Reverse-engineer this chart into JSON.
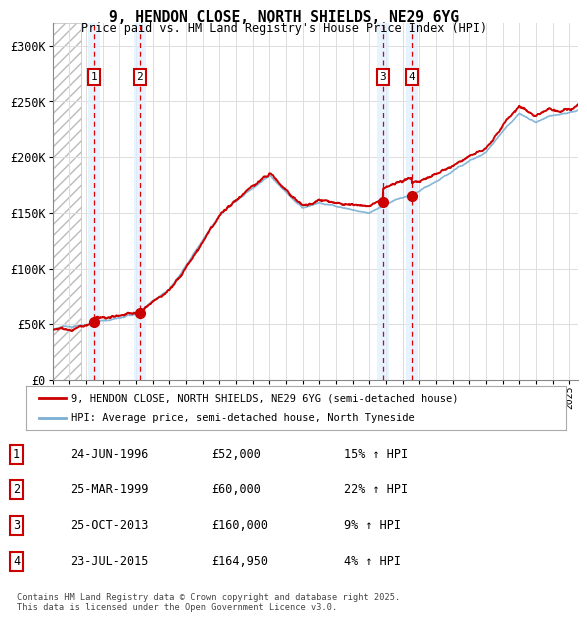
{
  "title": "9, HENDON CLOSE, NORTH SHIELDS, NE29 6YG",
  "subtitle": "Price paid vs. HM Land Registry's House Price Index (HPI)",
  "xlim_start": 1994.0,
  "xlim_end": 2025.5,
  "ylim": [
    0,
    320000
  ],
  "yticks": [
    0,
    50000,
    100000,
    150000,
    200000,
    250000,
    300000
  ],
  "ytick_labels": [
    "£0",
    "£50K",
    "£100K",
    "£150K",
    "£200K",
    "£250K",
    "£300K"
  ],
  "hatch_start": 1994.0,
  "hatch_end": 1995.7,
  "sale_dates": [
    1996.48,
    1999.23,
    2013.82,
    2015.56
  ],
  "sale_prices": [
    52000,
    60000,
    160000,
    164950
  ],
  "sale_labels": [
    "1",
    "2",
    "3",
    "4"
  ],
  "red_line_color": "#cc0000",
  "blue_line_color": "#7aafd4",
  "shade_color": "#ddeeff",
  "grid_color": "#dddddd",
  "legend_entry_1": "9, HENDON CLOSE, NORTH SHIELDS, NE29 6YG (semi-detached house)",
  "legend_entry_2": "HPI: Average price, semi-detached house, North Tyneside",
  "table_rows": [
    [
      "1",
      "24-JUN-1996",
      "£52,000",
      "15% ↑ HPI"
    ],
    [
      "2",
      "25-MAR-1999",
      "£60,000",
      "22% ↑ HPI"
    ],
    [
      "3",
      "25-OCT-2013",
      "£160,000",
      "9% ↑ HPI"
    ],
    [
      "4",
      "23-JUL-2015",
      "£164,950",
      "4% ↑ HPI"
    ]
  ],
  "footnote": "Contains HM Land Registry data © Crown copyright and database right 2025.\nThis data is licensed under the Open Government Licence v3.0.",
  "background_color": "#ffffff"
}
